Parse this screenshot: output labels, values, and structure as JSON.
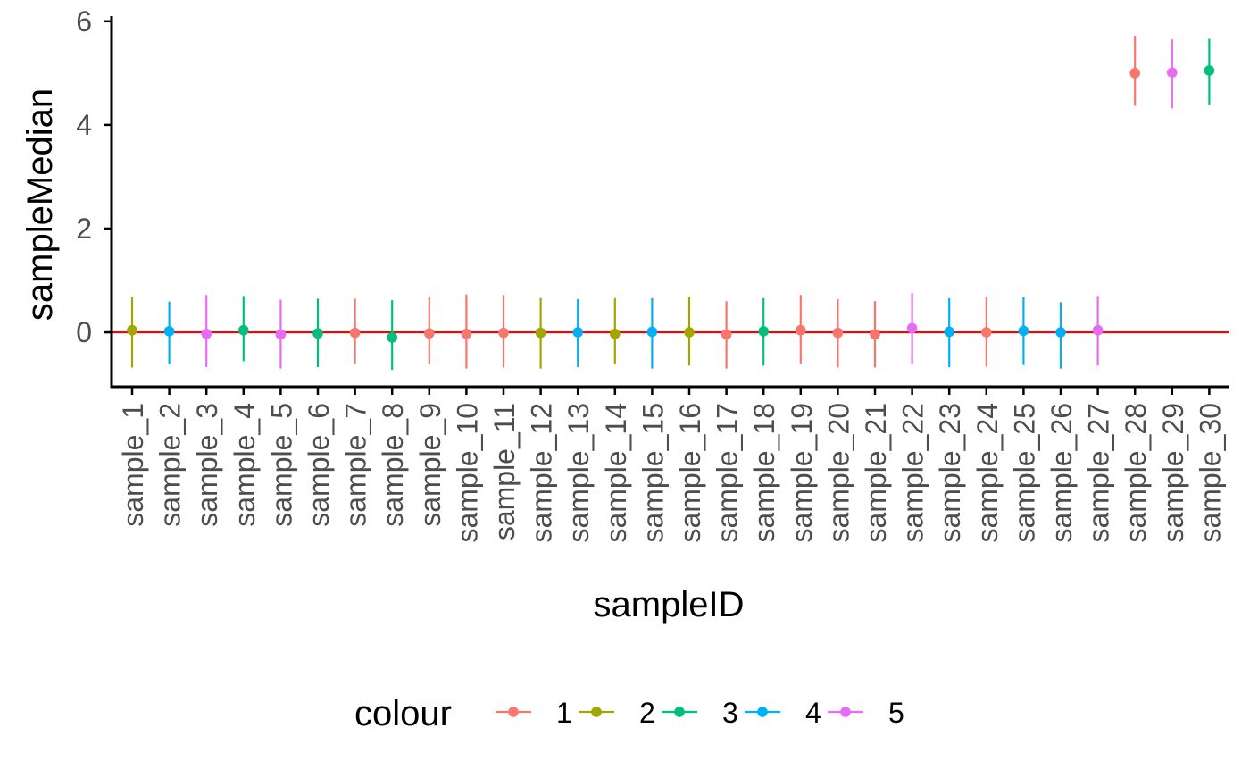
{
  "chart_data": {
    "type": "scatter",
    "subtype": "pointrange",
    "xlabel": "sampleID",
    "ylabel": "sampleMedian",
    "ylim": [
      -1.05,
      6.1
    ],
    "yticks": [
      0,
      2,
      4,
      6
    ],
    "reference_line": {
      "y": 0,
      "color": "#FF0000"
    },
    "legend": {
      "title": "colour",
      "position": "bottom",
      "entries": [
        {
          "label": "1",
          "color": "#F8766D"
        },
        {
          "label": "2",
          "color": "#A3A500"
        },
        {
          "label": "3",
          "color": "#00BF7D"
        },
        {
          "label": "4",
          "color": "#00B0F6"
        },
        {
          "label": "5",
          "color": "#E76BF3"
        }
      ]
    },
    "categories": [
      "sample_1",
      "sample_2",
      "sample_3",
      "sample_4",
      "sample_5",
      "sample_6",
      "sample_7",
      "sample_8",
      "sample_9",
      "sample_10",
      "sample_11",
      "sample_12",
      "sample_13",
      "sample_14",
      "sample_15",
      "sample_16",
      "sample_17",
      "sample_18",
      "sample_19",
      "sample_20",
      "sample_21",
      "sample_22",
      "sample_23",
      "sample_24",
      "sample_25",
      "sample_26",
      "sample_27",
      "sample_28",
      "sample_29",
      "sample_30"
    ],
    "points": [
      {
        "x": "sample_1",
        "y": 0.04,
        "lo": -0.68,
        "hi": 0.67,
        "colour": "2"
      },
      {
        "x": "sample_2",
        "y": 0.02,
        "lo": -0.62,
        "hi": 0.59,
        "colour": "4"
      },
      {
        "x": "sample_3",
        "y": -0.03,
        "lo": -0.67,
        "hi": 0.72,
        "colour": "5"
      },
      {
        "x": "sample_4",
        "y": 0.04,
        "lo": -0.56,
        "hi": 0.7,
        "colour": "3"
      },
      {
        "x": "sample_5",
        "y": -0.04,
        "lo": -0.7,
        "hi": 0.63,
        "colour": "5"
      },
      {
        "x": "sample_6",
        "y": -0.02,
        "lo": -0.67,
        "hi": 0.65,
        "colour": "3"
      },
      {
        "x": "sample_7",
        "y": -0.01,
        "lo": -0.6,
        "hi": 0.65,
        "colour": "1"
      },
      {
        "x": "sample_8",
        "y": -0.1,
        "lo": -0.72,
        "hi": 0.62,
        "colour": "3"
      },
      {
        "x": "sample_9",
        "y": -0.02,
        "lo": -0.61,
        "hi": 0.69,
        "colour": "1"
      },
      {
        "x": "sample_10",
        "y": -0.03,
        "lo": -0.7,
        "hi": 0.73,
        "colour": "1"
      },
      {
        "x": "sample_11",
        "y": -0.01,
        "lo": -0.68,
        "hi": 0.72,
        "colour": "1"
      },
      {
        "x": "sample_12",
        "y": -0.01,
        "lo": -0.7,
        "hi": 0.66,
        "colour": "2"
      },
      {
        "x": "sample_13",
        "y": 0.0,
        "lo": -0.67,
        "hi": 0.64,
        "colour": "4"
      },
      {
        "x": "sample_14",
        "y": -0.03,
        "lo": -0.62,
        "hi": 0.66,
        "colour": "2"
      },
      {
        "x": "sample_15",
        "y": 0.01,
        "lo": -0.7,
        "hi": 0.66,
        "colour": "4"
      },
      {
        "x": "sample_16",
        "y": 0.0,
        "lo": -0.64,
        "hi": 0.69,
        "colour": "2"
      },
      {
        "x": "sample_17",
        "y": -0.04,
        "lo": -0.7,
        "hi": 0.6,
        "colour": "1"
      },
      {
        "x": "sample_18",
        "y": 0.02,
        "lo": -0.64,
        "hi": 0.66,
        "colour": "3"
      },
      {
        "x": "sample_19",
        "y": 0.04,
        "lo": -0.6,
        "hi": 0.72,
        "colour": "1"
      },
      {
        "x": "sample_20",
        "y": -0.01,
        "lo": -0.68,
        "hi": 0.64,
        "colour": "1"
      },
      {
        "x": "sample_21",
        "y": -0.04,
        "lo": -0.68,
        "hi": 0.6,
        "colour": "1"
      },
      {
        "x": "sample_22",
        "y": 0.08,
        "lo": -0.6,
        "hi": 0.76,
        "colour": "5"
      },
      {
        "x": "sample_23",
        "y": 0.01,
        "lo": -0.67,
        "hi": 0.66,
        "colour": "4"
      },
      {
        "x": "sample_24",
        "y": 0.0,
        "lo": -0.66,
        "hi": 0.69,
        "colour": "1"
      },
      {
        "x": "sample_25",
        "y": 0.03,
        "lo": -0.63,
        "hi": 0.68,
        "colour": "4"
      },
      {
        "x": "sample_26",
        "y": 0.0,
        "lo": -0.7,
        "hi": 0.58,
        "colour": "4"
      },
      {
        "x": "sample_27",
        "y": 0.04,
        "lo": -0.64,
        "hi": 0.7,
        "colour": "5"
      },
      {
        "x": "sample_28",
        "y": 5.0,
        "lo": 4.37,
        "hi": 5.72,
        "colour": "1"
      },
      {
        "x": "sample_29",
        "y": 5.01,
        "lo": 4.32,
        "hi": 5.65,
        "colour": "5"
      },
      {
        "x": "sample_30",
        "y": 5.05,
        "lo": 4.39,
        "hi": 5.66,
        "colour": "3"
      }
    ]
  }
}
